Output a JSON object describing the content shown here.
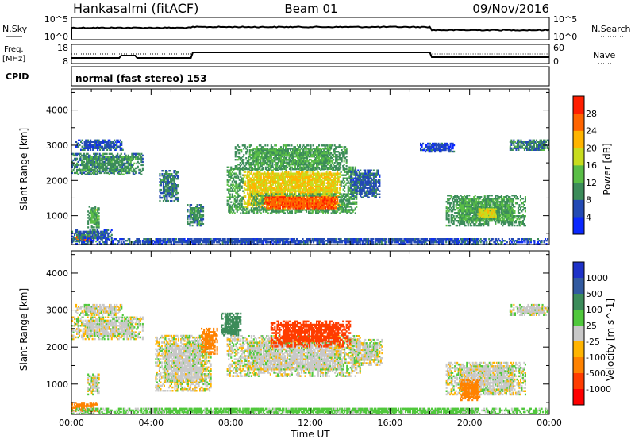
{
  "header": {
    "station": "Hankasalmi (fitACF)",
    "beam": "Beam 01",
    "date": "09/Nov/2016"
  },
  "nsky_panel": {
    "left_label": "N.Sky",
    "left_ticks": [
      "10^5",
      "10^0"
    ],
    "right_label": "N.Search",
    "right_ticks": [
      "10^5",
      "10^0"
    ]
  },
  "freq_panel": {
    "left_label_1": "Freq.",
    "left_label_2": "[MHz]",
    "left_ticks": [
      "18",
      "8"
    ],
    "right_label": "Nave",
    "right_ticks": [
      "60",
      "0"
    ]
  },
  "cpid_panel": {
    "label": "CPID",
    "text": "normal (fast stereo) 153"
  },
  "x_axis": {
    "ticks": [
      "00:00",
      "04:00",
      "08:00",
      "12:00",
      "16:00",
      "20:00",
      "00:00"
    ],
    "label": "Time UT"
  },
  "power_panel": {
    "ylabel": "Slant Range [km]",
    "yticks": [
      "4000",
      "3000",
      "2000",
      "1000"
    ],
    "colorbar_label": "Power [dB]",
    "colorbar_ticks": [
      "28",
      "24",
      "20",
      "16",
      "12",
      "8",
      "4"
    ],
    "colors": [
      "#0a28ff",
      "#234ab4",
      "#3c8c5a",
      "#5abe46",
      "#c8dc1e",
      "#ffb400",
      "#ff6400",
      "#ff1e00"
    ]
  },
  "velocity_panel": {
    "ylabel": "Slant Range [km]",
    "yticks": [
      "4000",
      "3000",
      "2000",
      "1000"
    ],
    "colorbar_label": "Velocity [m s^-1]",
    "colorbar_ticks": [
      "1000",
      "500",
      "100",
      "25",
      "-25",
      "-100",
      "-500",
      "-1000"
    ],
    "colors": [
      "#1e32c8",
      "#325aa0",
      "#3c8c5a",
      "#50c83c",
      "#c8c8c8",
      "#ffb400",
      "#ff8200",
      "#ff3c00",
      "#ff0000"
    ]
  },
  "chart_data": [
    {
      "type": "heatmap",
      "title": "Power",
      "xlabel": "Time UT",
      "ylabel": "Slant Range [km]",
      "x_range_hours": [
        0,
        24
      ],
      "ylim": [
        180,
        4600
      ],
      "colorbar": {
        "label": "Power [dB]",
        "range": [
          0,
          32
        ],
        "ticks": [
          4,
          8,
          12,
          16,
          20,
          24,
          28
        ]
      },
      "blobs": [
        {
          "t0": 0.0,
          "t1": 1.3,
          "r0": 250,
          "r1": 450,
          "level": 26
        },
        {
          "t0": 0.0,
          "t1": 2.0,
          "r0": 300,
          "r1": 600,
          "level": 7
        },
        {
          "t0": 0.8,
          "t1": 1.4,
          "r0": 650,
          "r1": 1250,
          "level": 13
        },
        {
          "t0": 0.0,
          "t1": 3.6,
          "r0": 2150,
          "r1": 2750,
          "level": 10
        },
        {
          "t0": 0.2,
          "t1": 2.6,
          "r0": 2850,
          "r1": 3150,
          "level": 6
        },
        {
          "t0": 4.4,
          "t1": 5.3,
          "r0": 1400,
          "r1": 2300,
          "level": 9
        },
        {
          "t0": 5.8,
          "t1": 6.6,
          "r0": 700,
          "r1": 1300,
          "level": 10
        },
        {
          "t0": 7.8,
          "t1": 14.3,
          "r0": 1050,
          "r1": 2400,
          "level": 20
        },
        {
          "t0": 9.0,
          "t1": 14.0,
          "r0": 1100,
          "r1": 1600,
          "level": 27
        },
        {
          "t0": 8.2,
          "t1": 13.8,
          "r0": 2300,
          "r1": 3000,
          "level": 12
        },
        {
          "t0": 14.0,
          "t1": 15.5,
          "r0": 1500,
          "r1": 2300,
          "level": 7
        },
        {
          "t0": 18.8,
          "t1": 22.8,
          "r0": 700,
          "r1": 1600,
          "level": 12
        },
        {
          "t0": 20.2,
          "t1": 21.5,
          "r0": 850,
          "r1": 1250,
          "level": 19
        },
        {
          "t0": 22.0,
          "t1": 24.0,
          "r0": 2850,
          "r1": 3150,
          "level": 9
        },
        {
          "t0": 17.5,
          "t1": 19.2,
          "r0": 2800,
          "r1": 3050,
          "level": 5
        },
        {
          "t0": 0.0,
          "t1": 24.0,
          "r0": 180,
          "r1": 350,
          "level": 6
        }
      ]
    },
    {
      "type": "heatmap",
      "title": "Velocity",
      "xlabel": "Time UT",
      "ylabel": "Slant Range [km]",
      "x_range_hours": [
        0,
        24
      ],
      "ylim": [
        180,
        4600
      ],
      "colorbar": {
        "label": "Velocity [m s^-1]",
        "range": [
          -1000,
          1000
        ],
        "ticks": [
          1000,
          500,
          100,
          25,
          -25,
          -100,
          -500,
          -1000
        ]
      },
      "blobs": [
        {
          "t0": 0.0,
          "t1": 1.3,
          "r0": 250,
          "r1": 500,
          "level": -300
        },
        {
          "t0": 0.0,
          "t1": 3.6,
          "r0": 2200,
          "r1": 2800,
          "level": 0
        },
        {
          "t0": 0.2,
          "t1": 2.6,
          "r0": 2850,
          "r1": 3150,
          "level": 0
        },
        {
          "t0": 0.8,
          "t1": 1.4,
          "r0": 700,
          "r1": 1250,
          "level": 0
        },
        {
          "t0": 4.2,
          "t1": 7.0,
          "r0": 800,
          "r1": 2300,
          "level": 0
        },
        {
          "t0": 7.5,
          "t1": 8.5,
          "r0": 2300,
          "r1": 2900,
          "level": 200
        },
        {
          "t0": 7.8,
          "t1": 14.5,
          "r0": 1200,
          "r1": 2300,
          "level": 0
        },
        {
          "t0": 10.0,
          "t1": 14.0,
          "r0": 2000,
          "r1": 2700,
          "level": -700
        },
        {
          "t0": 6.5,
          "t1": 7.3,
          "r0": 1800,
          "r1": 2500,
          "level": -300
        },
        {
          "t0": 14.0,
          "t1": 15.6,
          "r0": 1500,
          "r1": 2200,
          "level": 0
        },
        {
          "t0": 18.8,
          "t1": 22.8,
          "r0": 700,
          "r1": 1600,
          "level": 0
        },
        {
          "t0": 19.5,
          "t1": 20.5,
          "r0": 550,
          "r1": 1100,
          "level": -400
        },
        {
          "t0": 22.0,
          "t1": 24.0,
          "r0": 2850,
          "r1": 3150,
          "level": 0
        },
        {
          "t0": 0.0,
          "t1": 24.0,
          "r0": 180,
          "r1": 350,
          "level": 50
        }
      ]
    }
  ]
}
